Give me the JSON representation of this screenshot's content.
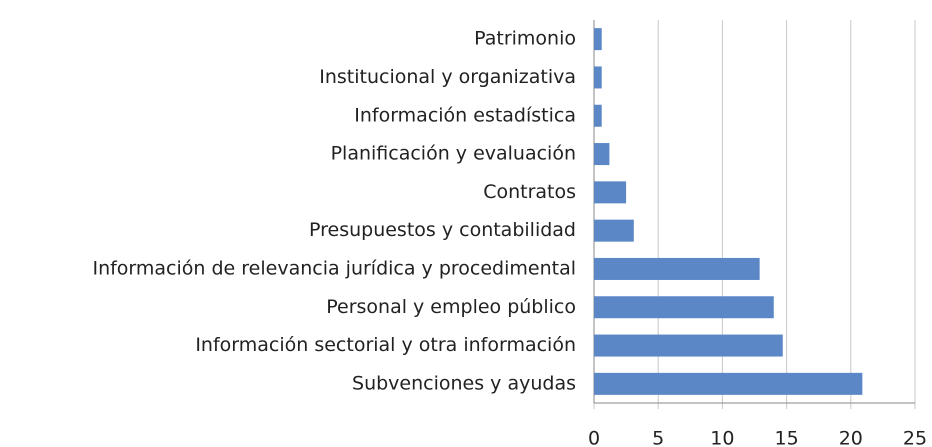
{
  "chart_data": {
    "type": "barh",
    "categories": [
      "Patrimonio",
      "Institucional y organizativa",
      "Información estadística",
      "Planificación y evaluación",
      "Contratos",
      "Presupuestos y contabilidad",
      "Información de relevancia jurídica y procedimental",
      "Personal y empleo público",
      "Información sectorial y otra información",
      "Subvenciones y ayudas"
    ],
    "values": [
      0.6,
      0.6,
      0.6,
      1.2,
      2.5,
      3.1,
      12.9,
      14.0,
      14.7,
      20.9
    ],
    "color": "#5b87c7",
    "xlim": [
      0,
      25
    ],
    "xticks": [
      0,
      5,
      10,
      15,
      20,
      25
    ],
    "grid": true
  }
}
